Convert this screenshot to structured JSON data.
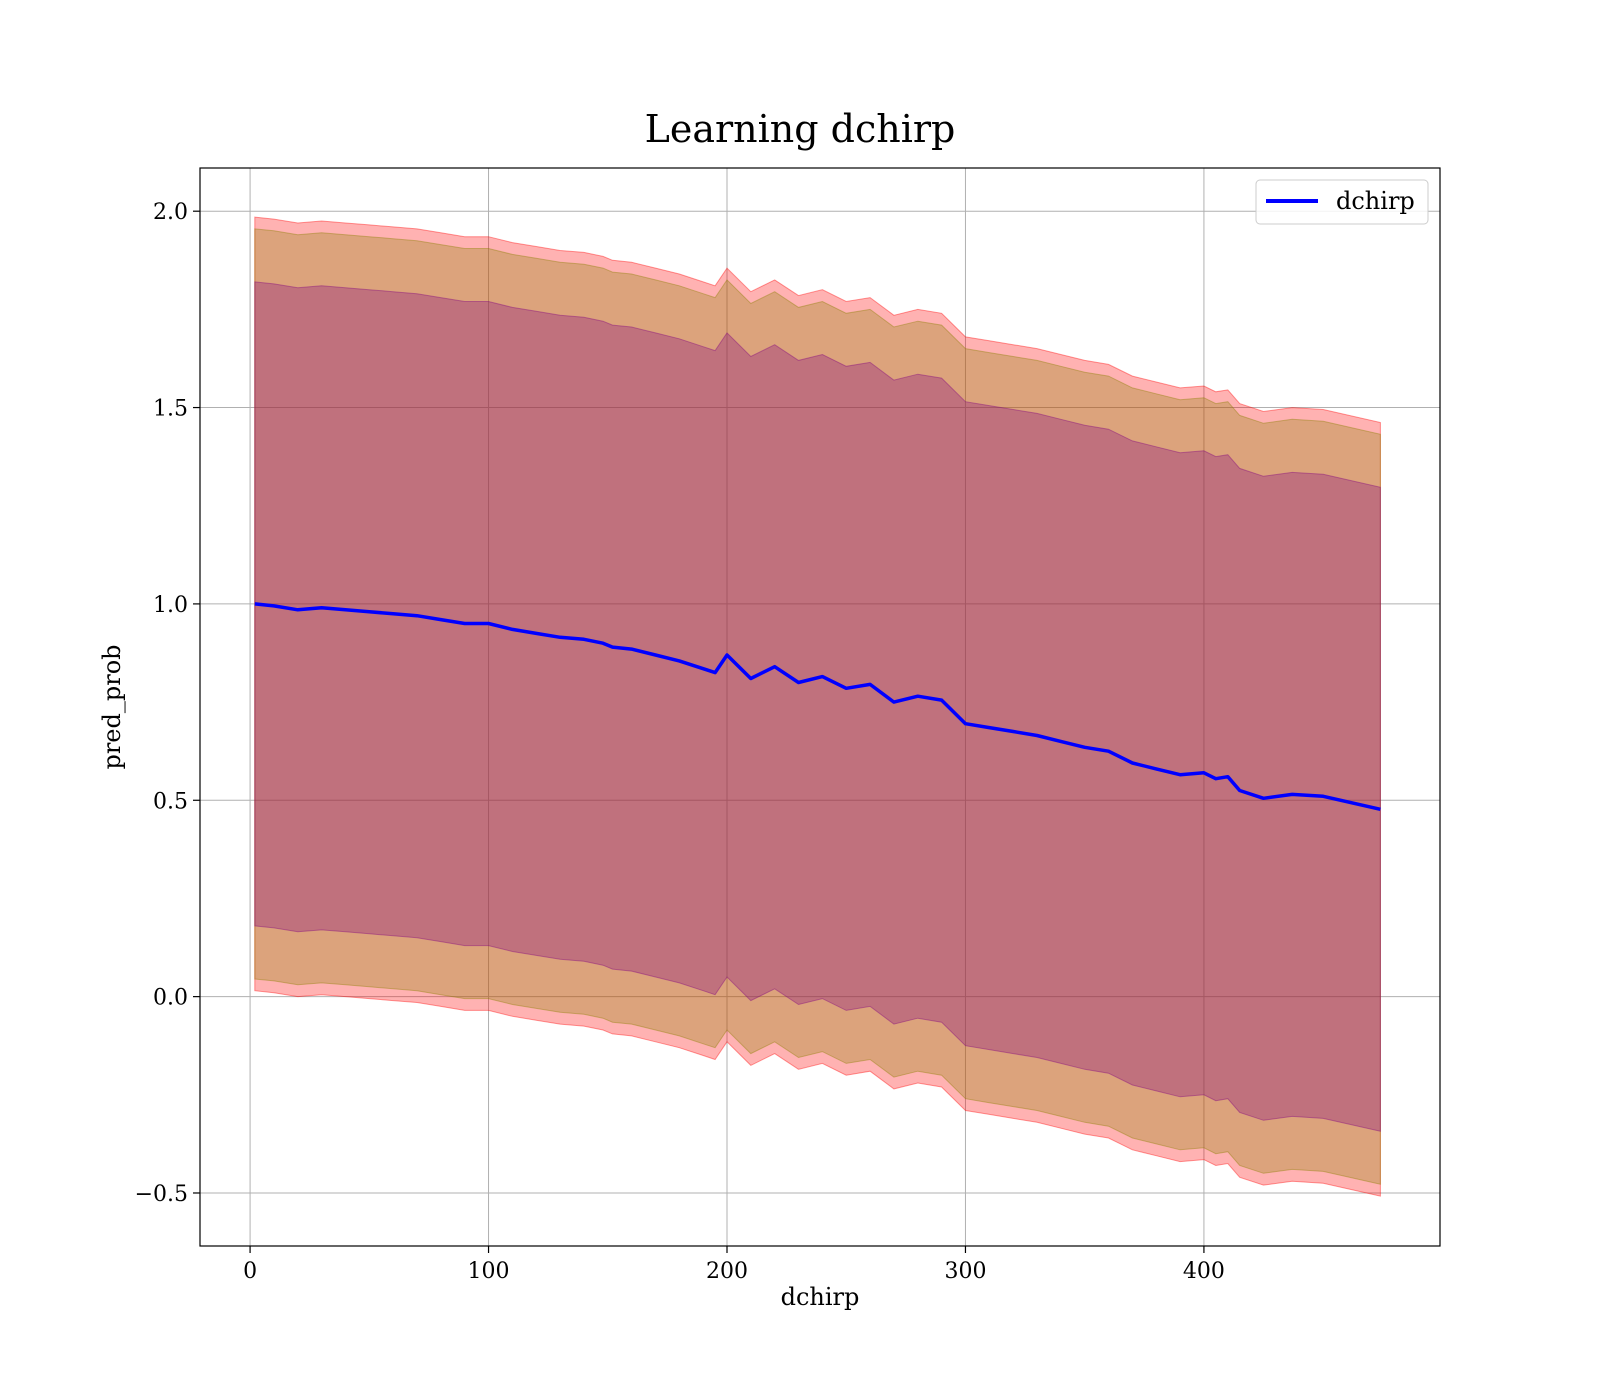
{
  "chart_data": {
    "type": "area",
    "title": "Learning dchirp",
    "xlabel": "dchirp",
    "ylabel": "pred_prob",
    "xlim": [
      -21,
      499
    ],
    "ylim": [
      -0.635,
      2.11
    ],
    "xticks": [
      0,
      100,
      200,
      300,
      400
    ],
    "yticks": [
      -0.5,
      0.0,
      0.5,
      1.0,
      1.5,
      2.0
    ],
    "ytick_labels": [
      "−0.5",
      "0.0",
      "0.5",
      "1.0",
      "1.5",
      "2.0"
    ],
    "grid": true,
    "legend": {
      "position": "top-right",
      "entries": [
        "dchirp"
      ]
    },
    "x": [
      2,
      10,
      20,
      30,
      40,
      50,
      60,
      70,
      80,
      90,
      100,
      110,
      120,
      130,
      140,
      148,
      152,
      160,
      170,
      180,
      190,
      195,
      200,
      210,
      220,
      230,
      240,
      250,
      260,
      270,
      280,
      290,
      300,
      310,
      320,
      330,
      340,
      350,
      360,
      370,
      380,
      390,
      400,
      405,
      410,
      415,
      425,
      437,
      450,
      474
    ],
    "series": [
      {
        "name": "dchirp",
        "color": "#0000ff",
        "values": [
          1.0,
          0.995,
          0.985,
          0.99,
          0.985,
          0.98,
          0.975,
          0.97,
          0.96,
          0.95,
          0.95,
          0.935,
          0.925,
          0.915,
          0.91,
          0.9,
          0.89,
          0.885,
          0.87,
          0.855,
          0.835,
          0.825,
          0.87,
          0.81,
          0.84,
          0.8,
          0.815,
          0.785,
          0.795,
          0.75,
          0.765,
          0.755,
          0.695,
          0.685,
          0.675,
          0.665,
          0.65,
          0.635,
          0.625,
          0.595,
          0.58,
          0.565,
          0.57,
          0.555,
          0.56,
          0.525,
          0.505,
          0.515,
          0.51,
          0.477
        ]
      }
    ],
    "bands": [
      {
        "color": "#ff0000",
        "alpha": 0.3,
        "offset": 0.985
      },
      {
        "color": "#8b8000",
        "alpha": 0.3,
        "offset": 0.955
      },
      {
        "color": "#800080",
        "alpha": 0.3,
        "offset": 0.82
      }
    ]
  }
}
